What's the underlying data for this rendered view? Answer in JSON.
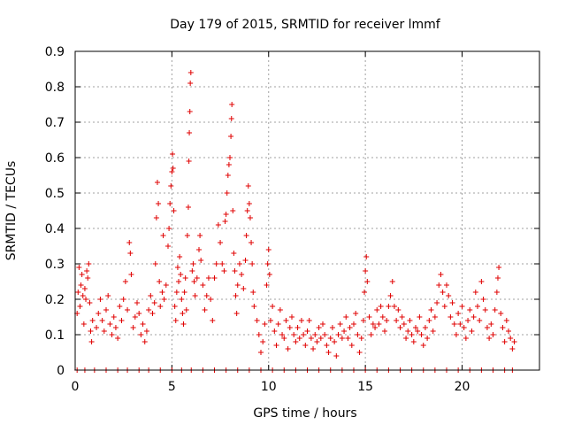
{
  "chart_data": {
    "type": "scatter",
    "title": "Day 179 of 2015, SRMTID for receiver lmmf",
    "xlabel": "GPS time / hours",
    "ylabel": "SRMTID / TECUs",
    "xlim": [
      0,
      24
    ],
    "ylim": [
      0,
      0.9
    ],
    "x_ticks": [
      0,
      5,
      10,
      15,
      20
    ],
    "y_ticks": [
      0,
      0.1,
      0.2,
      0.3,
      0.4,
      0.5,
      0.6,
      0.7,
      0.8,
      0.9
    ],
    "grid": true,
    "marker": "+",
    "series": [
      {
        "name": "SRMTID",
        "color": "#e00000",
        "points": [
          [
            0.1,
            0.16
          ],
          [
            0.15,
            0.22
          ],
          [
            0.2,
            0.29
          ],
          [
            0.25,
            0.18
          ],
          [
            0.3,
            0.24
          ],
          [
            0.35,
            0.27
          ],
          [
            0.4,
            0.21
          ],
          [
            0.45,
            0.13
          ],
          [
            0.5,
            0.23
          ],
          [
            0.55,
            0.2
          ],
          [
            0.6,
            0.28
          ],
          [
            0.65,
            0.26
          ],
          [
            0.7,
            0.3
          ],
          [
            0.75,
            0.19
          ],
          [
            0.8,
            0.11
          ],
          [
            0.85,
            0.08
          ],
          [
            0.9,
            0.14
          ],
          [
            1.1,
            0.12
          ],
          [
            1.2,
            0.16
          ],
          [
            1.3,
            0.2
          ],
          [
            1.4,
            0.14
          ],
          [
            1.5,
            0.11
          ],
          [
            1.6,
            0.17
          ],
          [
            1.7,
            0.21
          ],
          [
            1.8,
            0.13
          ],
          [
            1.9,
            0.1
          ],
          [
            2.0,
            0.15
          ],
          [
            2.1,
            0.12
          ],
          [
            2.2,
            0.09
          ],
          [
            2.3,
            0.18
          ],
          [
            2.4,
            0.14
          ],
          [
            2.5,
            0.2
          ],
          [
            2.6,
            0.25
          ],
          [
            2.7,
            0.17
          ],
          [
            2.8,
            0.36
          ],
          [
            2.85,
            0.33
          ],
          [
            2.9,
            0.27
          ],
          [
            3.0,
            0.12
          ],
          [
            3.1,
            0.15
          ],
          [
            3.2,
            0.19
          ],
          [
            3.3,
            0.16
          ],
          [
            3.4,
            0.1
          ],
          [
            3.5,
            0.13
          ],
          [
            3.6,
            0.08
          ],
          [
            3.7,
            0.11
          ],
          [
            3.8,
            0.17
          ],
          [
            3.9,
            0.21
          ],
          [
            4.0,
            0.16
          ],
          [
            4.1,
            0.19
          ],
          [
            4.15,
            0.3
          ],
          [
            4.2,
            0.43
          ],
          [
            4.25,
            0.53
          ],
          [
            4.3,
            0.47
          ],
          [
            4.35,
            0.25
          ],
          [
            4.4,
            0.18
          ],
          [
            4.5,
            0.22
          ],
          [
            4.55,
            0.38
          ],
          [
            4.6,
            0.2
          ],
          [
            4.7,
            0.24
          ],
          [
            4.8,
            0.35
          ],
          [
            4.85,
            0.4
          ],
          [
            4.9,
            0.47
          ],
          [
            4.95,
            0.52
          ],
          [
            5.0,
            0.56
          ],
          [
            5.03,
            0.61
          ],
          [
            5.06,
            0.57
          ],
          [
            5.1,
            0.45
          ],
          [
            5.15,
            0.18
          ],
          [
            5.2,
            0.14
          ],
          [
            5.25,
            0.22
          ],
          [
            5.3,
            0.29
          ],
          [
            5.35,
            0.25
          ],
          [
            5.4,
            0.32
          ],
          [
            5.45,
            0.27
          ],
          [
            5.5,
            0.2
          ],
          [
            5.55,
            0.16
          ],
          [
            5.6,
            0.13
          ],
          [
            5.65,
            0.22
          ],
          [
            5.7,
            0.26
          ],
          [
            5.75,
            0.17
          ],
          [
            5.8,
            0.38
          ],
          [
            5.85,
            0.46
          ],
          [
            5.88,
            0.59
          ],
          [
            5.9,
            0.67
          ],
          [
            5.93,
            0.73
          ],
          [
            5.95,
            0.81
          ],
          [
            5.98,
            0.84
          ],
          [
            6.05,
            0.28
          ],
          [
            6.1,
            0.3
          ],
          [
            6.15,
            0.25
          ],
          [
            6.2,
            0.21
          ],
          [
            6.3,
            0.26
          ],
          [
            6.4,
            0.34
          ],
          [
            6.45,
            0.38
          ],
          [
            6.5,
            0.31
          ],
          [
            6.6,
            0.24
          ],
          [
            6.7,
            0.17
          ],
          [
            6.8,
            0.21
          ],
          [
            6.9,
            0.26
          ],
          [
            7.0,
            0.2
          ],
          [
            7.1,
            0.14
          ],
          [
            7.2,
            0.26
          ],
          [
            7.3,
            0.3
          ],
          [
            7.4,
            0.41
          ],
          [
            7.5,
            0.36
          ],
          [
            7.6,
            0.3
          ],
          [
            7.7,
            0.28
          ],
          [
            7.75,
            0.42
          ],
          [
            7.8,
            0.44
          ],
          [
            7.85,
            0.5
          ],
          [
            7.9,
            0.55
          ],
          [
            7.95,
            0.58
          ],
          [
            8.0,
            0.6
          ],
          [
            8.05,
            0.66
          ],
          [
            8.08,
            0.71
          ],
          [
            8.1,
            0.75
          ],
          [
            8.15,
            0.45
          ],
          [
            8.2,
            0.33
          ],
          [
            8.25,
            0.28
          ],
          [
            8.3,
            0.21
          ],
          [
            8.35,
            0.16
          ],
          [
            8.4,
            0.24
          ],
          [
            8.5,
            0.3
          ],
          [
            8.6,
            0.27
          ],
          [
            8.7,
            0.23
          ],
          [
            8.8,
            0.31
          ],
          [
            8.85,
            0.38
          ],
          [
            8.9,
            0.45
          ],
          [
            8.95,
            0.52
          ],
          [
            9.0,
            0.47
          ],
          [
            9.05,
            0.43
          ],
          [
            9.1,
            0.36
          ],
          [
            9.15,
            0.3
          ],
          [
            9.2,
            0.22
          ],
          [
            9.25,
            0.18
          ],
          [
            9.4,
            0.14
          ],
          [
            9.5,
            0.1
          ],
          [
            9.6,
            0.05
          ],
          [
            9.7,
            0.08
          ],
          [
            9.8,
            0.13
          ],
          [
            9.9,
            0.24
          ],
          [
            9.95,
            0.3
          ],
          [
            10.0,
            0.34
          ],
          [
            10.05,
            0.27
          ],
          [
            10.1,
            0.14
          ],
          [
            10.2,
            0.18
          ],
          [
            10.3,
            0.11
          ],
          [
            10.4,
            0.07
          ],
          [
            10.5,
            0.13
          ],
          [
            10.6,
            0.17
          ],
          [
            10.7,
            0.1
          ],
          [
            10.8,
            0.09
          ],
          [
            10.9,
            0.14
          ],
          [
            11.0,
            0.06
          ],
          [
            11.1,
            0.12
          ],
          [
            11.2,
            0.15
          ],
          [
            11.3,
            0.1
          ],
          [
            11.4,
            0.08
          ],
          [
            11.5,
            0.12
          ],
          [
            11.6,
            0.09
          ],
          [
            11.7,
            0.14
          ],
          [
            11.8,
            0.1
          ],
          [
            11.9,
            0.07
          ],
          [
            12.0,
            0.11
          ],
          [
            12.1,
            0.14
          ],
          [
            12.2,
            0.09
          ],
          [
            12.3,
            0.06
          ],
          [
            12.4,
            0.1
          ],
          [
            12.5,
            0.08
          ],
          [
            12.6,
            0.12
          ],
          [
            12.7,
            0.09
          ],
          [
            12.8,
            0.13
          ],
          [
            12.9,
            0.1
          ],
          [
            13.0,
            0.07
          ],
          [
            13.1,
            0.05
          ],
          [
            13.2,
            0.09
          ],
          [
            13.3,
            0.12
          ],
          [
            13.4,
            0.08
          ],
          [
            13.5,
            0.04
          ],
          [
            13.6,
            0.1
          ],
          [
            13.7,
            0.13
          ],
          [
            13.8,
            0.09
          ],
          [
            13.9,
            0.11
          ],
          [
            14.0,
            0.15
          ],
          [
            14.1,
            0.09
          ],
          [
            14.2,
            0.12
          ],
          [
            14.3,
            0.07
          ],
          [
            14.4,
            0.13
          ],
          [
            14.5,
            0.16
          ],
          [
            14.6,
            0.1
          ],
          [
            14.7,
            0.05
          ],
          [
            14.8,
            0.09
          ],
          [
            14.9,
            0.14
          ],
          [
            14.95,
            0.22
          ],
          [
            15.0,
            0.28
          ],
          [
            15.05,
            0.32
          ],
          [
            15.1,
            0.25
          ],
          [
            15.2,
            0.15
          ],
          [
            15.3,
            0.1
          ],
          [
            15.4,
            0.13
          ],
          [
            15.5,
            0.12
          ],
          [
            15.6,
            0.17
          ],
          [
            15.7,
            0.13
          ],
          [
            15.8,
            0.18
          ],
          [
            15.9,
            0.15
          ],
          [
            16.0,
            0.11
          ],
          [
            16.1,
            0.14
          ],
          [
            16.2,
            0.18
          ],
          [
            16.3,
            0.21
          ],
          [
            16.4,
            0.25
          ],
          [
            16.5,
            0.18
          ],
          [
            16.6,
            0.14
          ],
          [
            16.7,
            0.17
          ],
          [
            16.8,
            0.12
          ],
          [
            16.9,
            0.15
          ],
          [
            17.0,
            0.13
          ],
          [
            17.1,
            0.09
          ],
          [
            17.2,
            0.11
          ],
          [
            17.3,
            0.14
          ],
          [
            17.4,
            0.1
          ],
          [
            17.5,
            0.08
          ],
          [
            17.6,
            0.12
          ],
          [
            17.7,
            0.11
          ],
          [
            17.8,
            0.15
          ],
          [
            17.9,
            0.1
          ],
          [
            18.0,
            0.07
          ],
          [
            18.1,
            0.12
          ],
          [
            18.2,
            0.09
          ],
          [
            18.3,
            0.14
          ],
          [
            18.4,
            0.17
          ],
          [
            18.5,
            0.11
          ],
          [
            18.6,
            0.15
          ],
          [
            18.7,
            0.19
          ],
          [
            18.8,
            0.24
          ],
          [
            18.9,
            0.27
          ],
          [
            19.0,
            0.22
          ],
          [
            19.1,
            0.18
          ],
          [
            19.2,
            0.24
          ],
          [
            19.3,
            0.21
          ],
          [
            19.4,
            0.15
          ],
          [
            19.5,
            0.19
          ],
          [
            19.6,
            0.13
          ],
          [
            19.7,
            0.1
          ],
          [
            19.8,
            0.16
          ],
          [
            19.9,
            0.13
          ],
          [
            20.0,
            0.18
          ],
          [
            20.1,
            0.12
          ],
          [
            20.2,
            0.09
          ],
          [
            20.3,
            0.14
          ],
          [
            20.4,
            0.17
          ],
          [
            20.5,
            0.11
          ],
          [
            20.6,
            0.15
          ],
          [
            20.7,
            0.22
          ],
          [
            20.8,
            0.18
          ],
          [
            20.9,
            0.14
          ],
          [
            21.0,
            0.25
          ],
          [
            21.1,
            0.2
          ],
          [
            21.2,
            0.17
          ],
          [
            21.3,
            0.12
          ],
          [
            21.4,
            0.09
          ],
          [
            21.5,
            0.13
          ],
          [
            21.6,
            0.1
          ],
          [
            21.7,
            0.17
          ],
          [
            21.8,
            0.22
          ],
          [
            21.85,
            0.26
          ],
          [
            21.9,
            0.29
          ],
          [
            22.0,
            0.16
          ],
          [
            22.1,
            0.12
          ],
          [
            22.2,
            0.08
          ],
          [
            22.3,
            0.14
          ],
          [
            22.4,
            0.11
          ],
          [
            22.5,
            0.09
          ],
          [
            22.6,
            0.06
          ],
          [
            22.7,
            0.08
          ],
          [
            0.1,
            0.0
          ],
          [
            0.5,
            0.0
          ],
          [
            1.0,
            0.0
          ],
          [
            1.6,
            0.0
          ],
          [
            2.2,
            0.0
          ],
          [
            2.7,
            0.0
          ],
          [
            3.3,
            0.0
          ],
          [
            3.8,
            0.0
          ],
          [
            4.4,
            0.0
          ],
          [
            5.0,
            0.0
          ],
          [
            5.5,
            0.0
          ],
          [
            6.0,
            0.0
          ],
          [
            6.6,
            0.0
          ],
          [
            7.2,
            0.0
          ],
          [
            7.8,
            0.0
          ],
          [
            8.4,
            0.0
          ],
          [
            9.0,
            0.0
          ],
          [
            9.6,
            0.0
          ],
          [
            10.2,
            0.0
          ],
          [
            10.8,
            0.0
          ],
          [
            11.4,
            0.0
          ],
          [
            12.0,
            0.0
          ],
          [
            12.6,
            0.0
          ],
          [
            13.2,
            0.0
          ],
          [
            13.8,
            0.0
          ],
          [
            14.4,
            0.0
          ],
          [
            15.0,
            0.0
          ],
          [
            15.6,
            0.0
          ],
          [
            16.2,
            0.0
          ],
          [
            16.8,
            0.0
          ],
          [
            17.4,
            0.0
          ],
          [
            18.0,
            0.0
          ],
          [
            18.6,
            0.0
          ],
          [
            19.2,
            0.0
          ],
          [
            19.8,
            0.0
          ],
          [
            20.4,
            0.0
          ],
          [
            21.0,
            0.0
          ],
          [
            21.6,
            0.0
          ],
          [
            22.2,
            0.0
          ],
          [
            22.6,
            0.0
          ]
        ]
      }
    ]
  }
}
